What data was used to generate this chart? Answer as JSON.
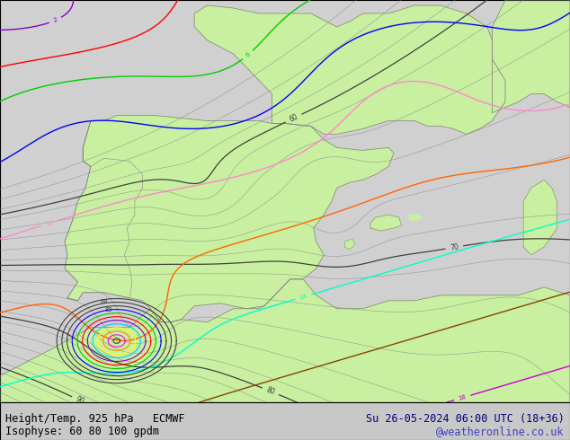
{
  "title_left": "Height/Temp. 925 hPa   ECMWF",
  "title_right": "Su 26-05-2024 06:00 UTC (18+36)",
  "subtitle_left": "Isophyse: 60 80 100 gpdm",
  "subtitle_right": "@weatheronline.co.uk",
  "background_land": "#c8f0a0",
  "background_sea": "#d0d0d0",
  "background_fig": "#c8c8c8",
  "contour_color": "#404040",
  "figsize": [
    6.34,
    4.9
  ],
  "dpi": 100,
  "xlim": [
    -12,
    10
  ],
  "ylim": [
    33,
    48
  ],
  "frontal_colors": [
    "#ff00ff",
    "#ff8800",
    "#ffff00",
    "#00ccff",
    "#8800cc",
    "#ff0000",
    "#00cc00",
    "#0000ff",
    "#ff88cc",
    "#ff6600",
    "#00ffcc",
    "#884400",
    "#cc00cc",
    "#ffcc00",
    "#00aaff"
  ]
}
